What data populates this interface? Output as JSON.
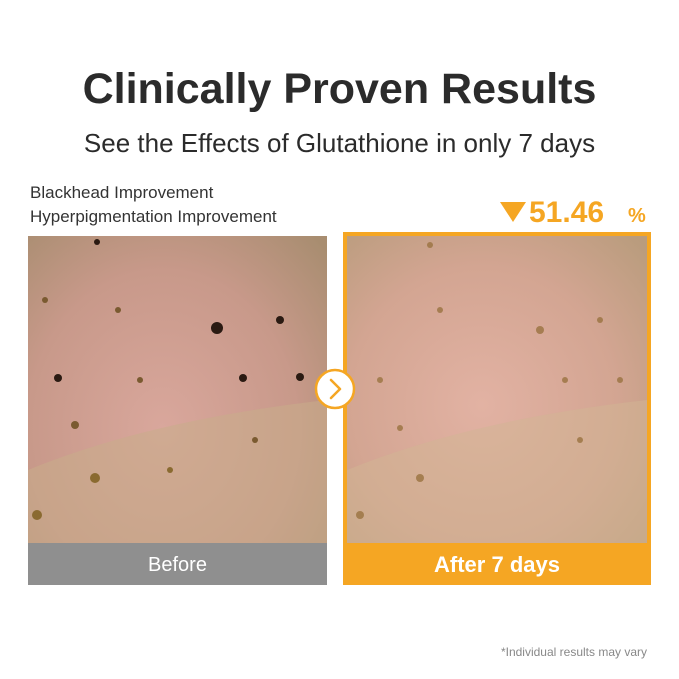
{
  "header": {
    "title": "Clinically Proven Results",
    "subtitle": "See the Effects of Glutathione in only 7 days"
  },
  "metrics": [
    "Blackhead Improvement",
    "Hyperpigmentation Improvement"
  ],
  "stat": {
    "number": "51.46",
    "unit": "%"
  },
  "panels": [
    {
      "label": "Before"
    },
    {
      "label": "After 7 days"
    }
  ],
  "footnote": "*Individual results may vary"
}
